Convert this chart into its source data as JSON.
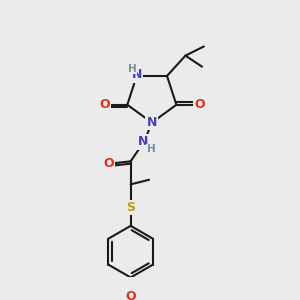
{
  "bg_color": "#ebebeb",
  "atom_colors": {
    "N": "#4040c0",
    "O": "#e03020",
    "S": "#c0a000",
    "C": "#000000",
    "H_label": "#7090a0"
  },
  "bond_color": "#1a1a1a",
  "bond_width": 1.5,
  "font_size_atom": 9,
  "font_size_small": 7.5
}
